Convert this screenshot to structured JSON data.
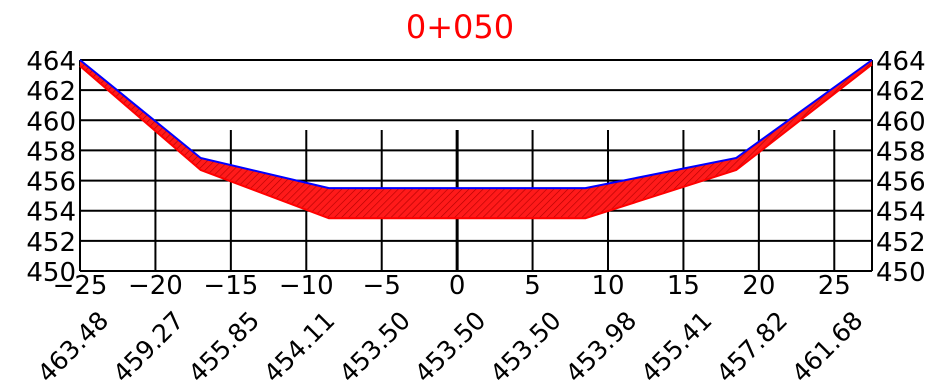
{
  "chart_data": {
    "type": "area",
    "title": "0+050",
    "colors": {
      "title": "#ff0000",
      "grid": "#000000",
      "top_line": "#0000ff",
      "bottom_line": "#ff0000",
      "fill": "#ff0000",
      "hatch": "#aa0000"
    },
    "xlim": [
      -25,
      27.5
    ],
    "ylim": [
      450,
      464
    ],
    "x_ticks": [
      -25,
      -20,
      -15,
      -10,
      -5,
      0,
      5,
      10,
      15,
      20,
      25
    ],
    "x_tick_labels": [
      "−25",
      "−20",
      "−15",
      "−10",
      "−5",
      "0",
      "5",
      "10",
      "15",
      "20",
      "25"
    ],
    "y_ticks": [
      450,
      452,
      454,
      456,
      458,
      460,
      462,
      464
    ],
    "y_tick_labels": [
      "450",
      "452",
      "454",
      "456",
      "458",
      "460",
      "462",
      "464"
    ],
    "station_x": [
      -25,
      -20,
      -15,
      -10,
      -5,
      0,
      5,
      10,
      15,
      20,
      25
    ],
    "station_labels": [
      "463.48",
      "459.27",
      "455.85",
      "454.11",
      "453.50",
      "453.50",
      "453.50",
      "453.98",
      "455.41",
      "457.82",
      "461.68"
    ],
    "series": [
      {
        "role": "existing-ground",
        "x": [
          -25,
          -17,
          -8.5,
          8.5,
          18.5,
          27.5
        ],
        "y": [
          464.0,
          457.5,
          455.5,
          455.5,
          457.5,
          464.0
        ]
      },
      {
        "role": "design-surface",
        "x": [
          -25,
          -17,
          -8.5,
          8.5,
          18.5,
          27.5
        ],
        "y": [
          463.6,
          456.7,
          453.5,
          453.5,
          456.7,
          463.7
        ]
      }
    ]
  }
}
